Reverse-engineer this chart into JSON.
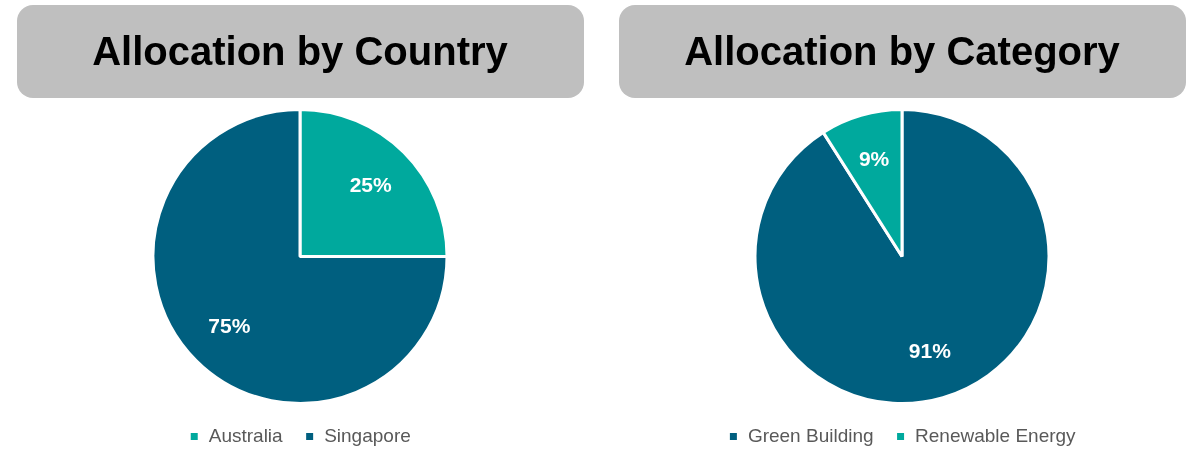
{
  "chart_data": [
    {
      "type": "pie",
      "title": "Allocation by Country",
      "categories": [
        "Australia",
        "Singapore"
      ],
      "values": [
        25,
        75
      ],
      "colors": [
        "#00a99d",
        "#005f7f"
      ],
      "value_labels": [
        "25%",
        "75%"
      ],
      "legend": "bottom"
    },
    {
      "type": "pie",
      "title": "Allocation by Category",
      "categories": [
        "Green Building",
        "Renewable Energy"
      ],
      "values": [
        91,
        9
      ],
      "colors": [
        "#005f7f",
        "#00a99d"
      ],
      "value_labels": [
        "91%",
        "9%"
      ],
      "legend": "bottom"
    }
  ]
}
